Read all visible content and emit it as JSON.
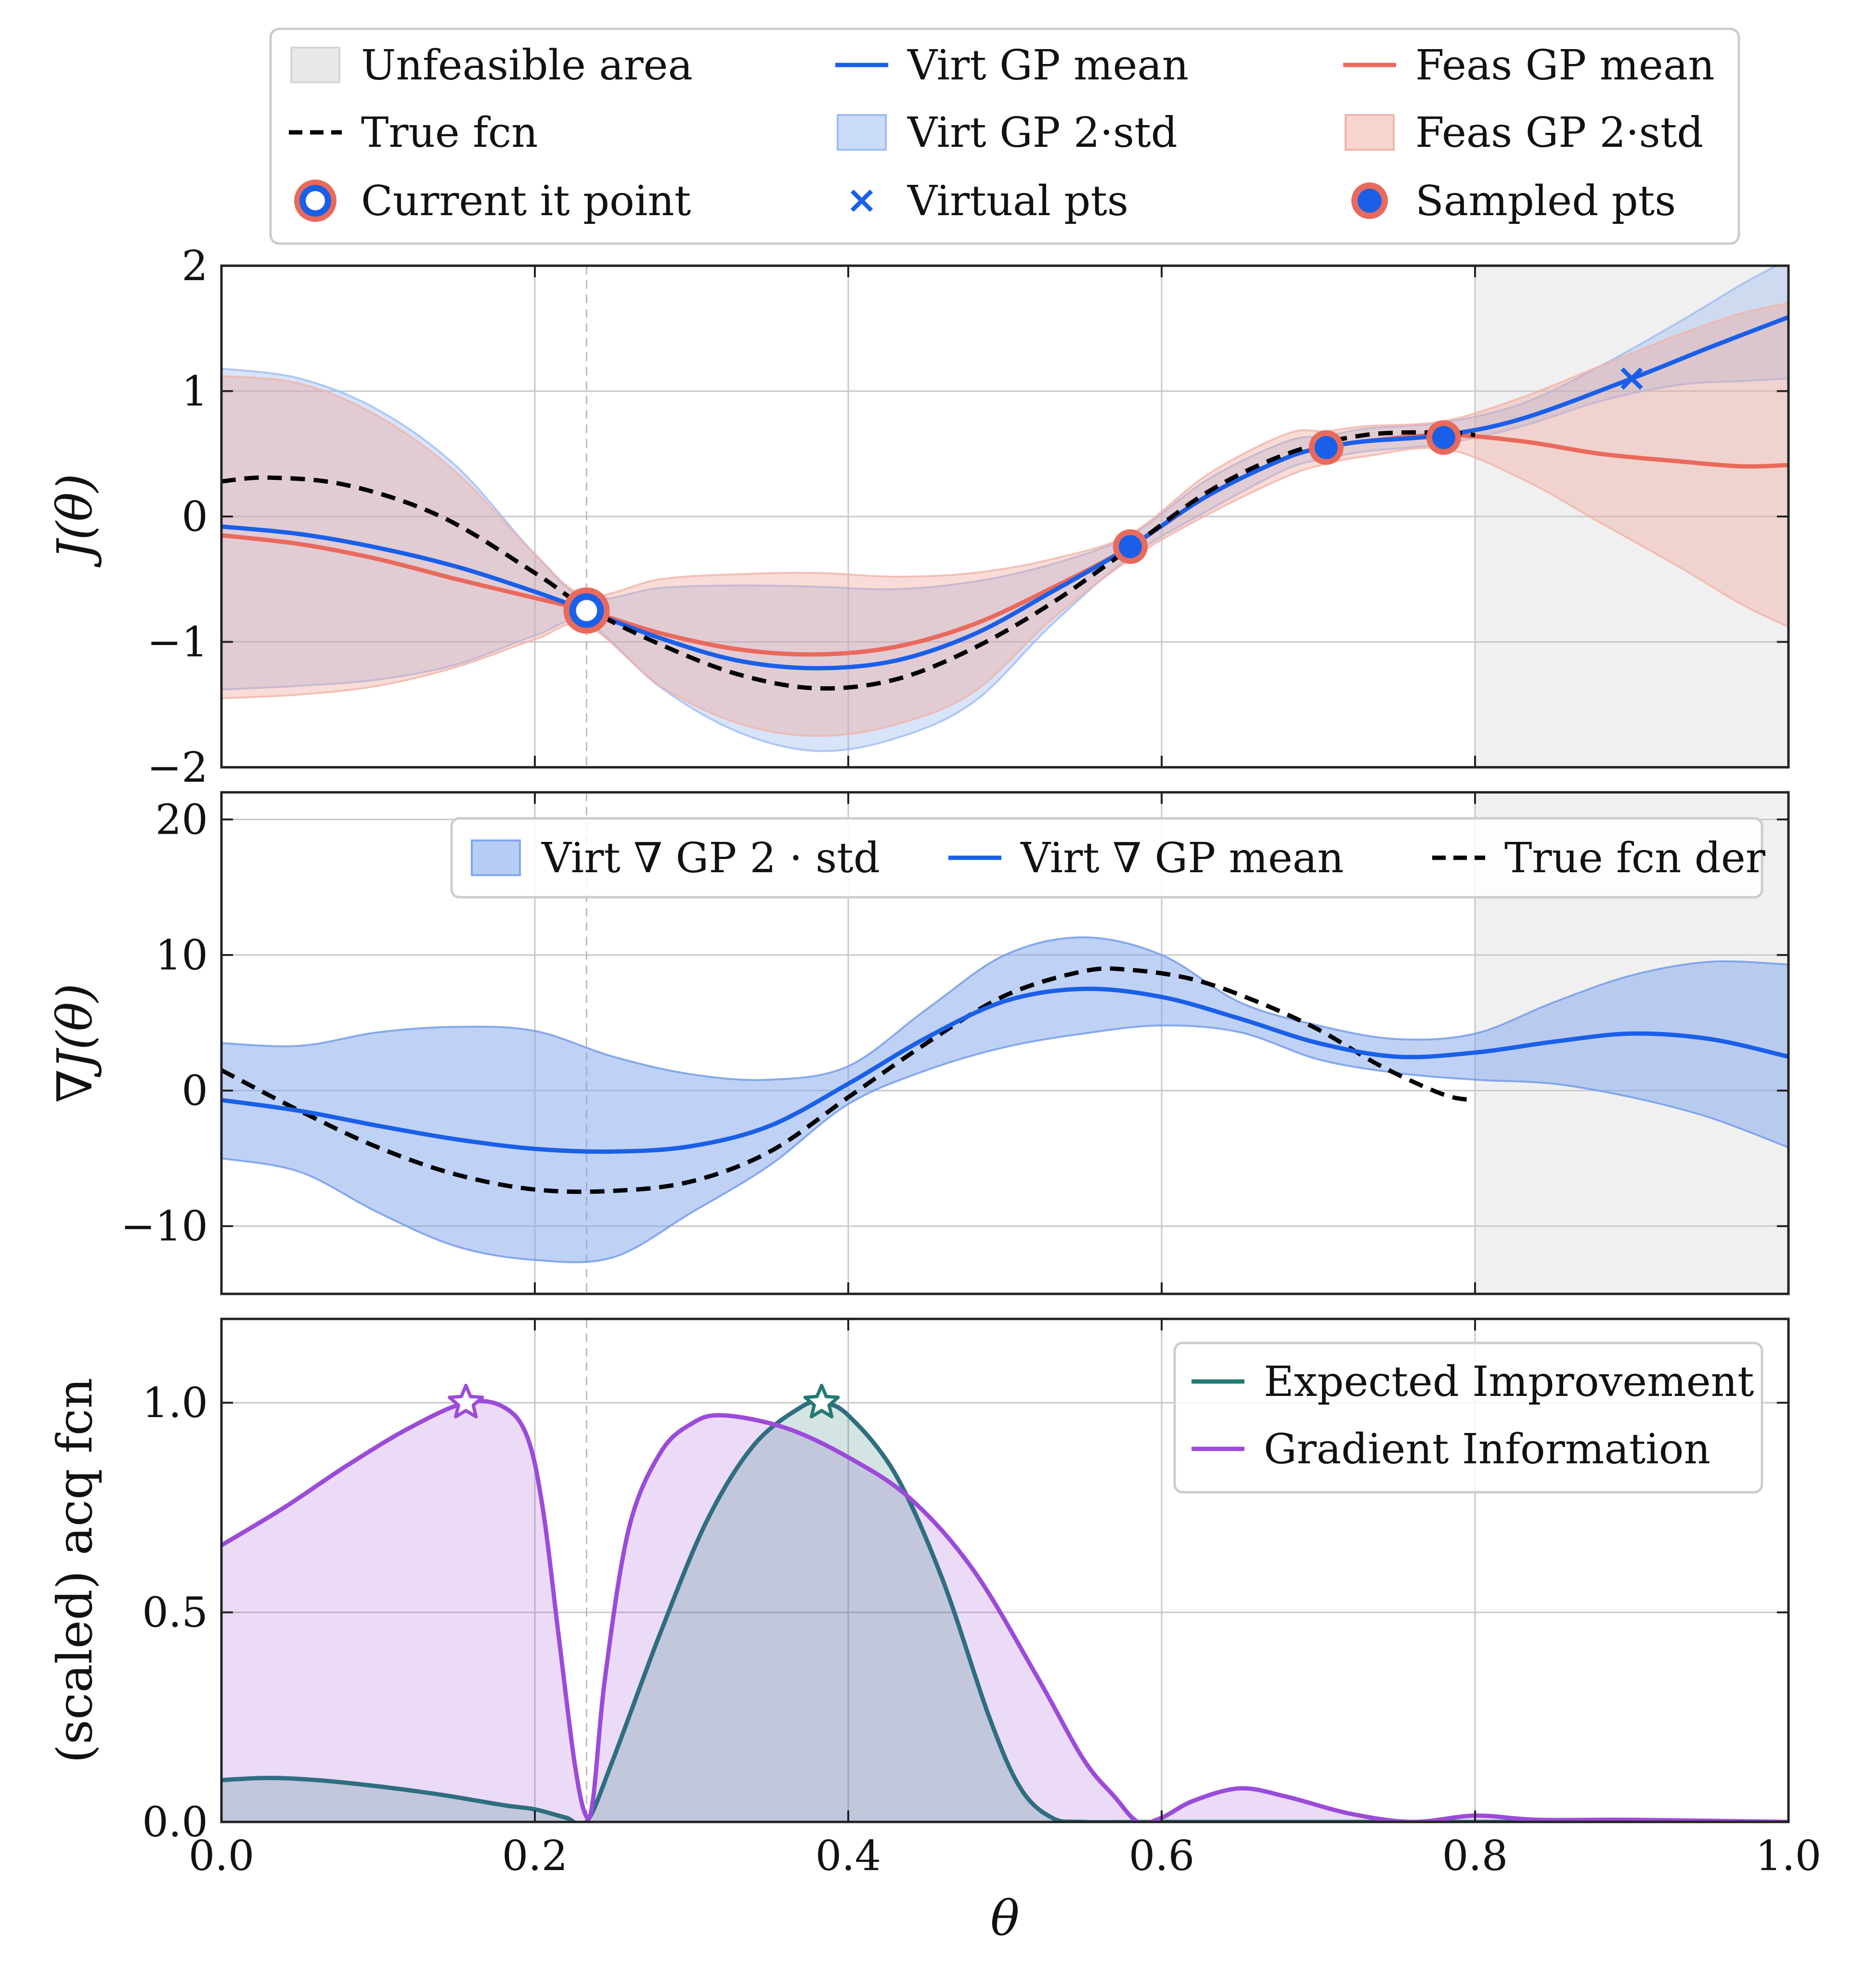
{
  "legend_top": {
    "items": [
      {
        "label": "Unfeasible area",
        "kind": "patch",
        "fill": "#e4e4e4",
        "stroke": "#d6d6d6"
      },
      {
        "label": "Virt GP mean",
        "kind": "line",
        "color": "#1a5fe8"
      },
      {
        "label": "Feas GP mean",
        "kind": "line",
        "color": "#e96a5c"
      },
      {
        "label": "True fcn",
        "kind": "dashed",
        "color": "#000000"
      },
      {
        "label": "Virt GP 2·std",
        "kind": "patch",
        "fill": "#c2d6f8",
        "stroke": "#9fbcf2"
      },
      {
        "label": "Feas GP 2·std",
        "kind": "patch",
        "fill": "#f7cfc8",
        "stroke": "#f0b4aa"
      },
      {
        "label": "Current it point",
        "kind": "ring",
        "color": "#1a5fe8",
        "edge": "#e96a5c"
      },
      {
        "label": "Virtual pts",
        "kind": "cross",
        "color": "#1a5fe8"
      },
      {
        "label": "Sampled pts",
        "kind": "dot",
        "color": "#1a5fe8",
        "edge": "#e96a5c"
      }
    ]
  },
  "legend_mid": {
    "items": [
      {
        "label": "Virt ∇ GP 2 · std",
        "kind": "patch",
        "fill": "#a9c4f5",
        "stroke": "#7fa6ee"
      },
      {
        "label": "Virt ∇ GP mean",
        "kind": "line",
        "color": "#1a5fe8"
      },
      {
        "label": "True fcn der",
        "kind": "dashed",
        "color": "#000000"
      }
    ]
  },
  "legend_bot": {
    "items": [
      {
        "label": "Expected Improvement",
        "kind": "line",
        "color": "#237a75"
      },
      {
        "label": "Gradient Information",
        "kind": "line",
        "color": "#9b4bd9"
      }
    ]
  },
  "colors": {
    "virt": "#1a5fe8",
    "feas": "#e96a5c",
    "true": "#000000",
    "ei": "#237a75",
    "gi": "#9b4bd9",
    "unfeasible": "#f0f0f0"
  },
  "chart_data": [
    {
      "type": "line",
      "ylabel": "J(θ)",
      "xlim": [
        0,
        1
      ],
      "ylim": [
        -2,
        2
      ],
      "yticks": [
        -2,
        -1,
        0,
        1,
        2
      ],
      "ytick_labels": [
        "−2",
        "−1",
        "0",
        "1",
        "2"
      ],
      "xticks": [
        0.0,
        0.2,
        0.4,
        0.6,
        0.8,
        1.0
      ],
      "grid": true,
      "unfeasible_region": [
        0.8,
        1.0
      ],
      "current_iteration_x": 0.233,
      "series": [
        {
          "name": "True fcn",
          "style": "dashed",
          "x": [
            0,
            0.03,
            0.08,
            0.14,
            0.2,
            0.233,
            0.28,
            0.33,
            0.38,
            0.43,
            0.48,
            0.53,
            0.58,
            0.63,
            0.68,
            0.73,
            0.78,
            0.8
          ],
          "y": [
            0.28,
            0.31,
            0.25,
            0.0,
            -0.45,
            -0.73,
            -1.02,
            -1.26,
            -1.37,
            -1.3,
            -1.05,
            -0.69,
            -0.25,
            0.2,
            0.5,
            0.65,
            0.67,
            0.65
          ]
        },
        {
          "name": "Virt GP mean",
          "x": [
            0,
            0.05,
            0.1,
            0.15,
            0.2,
            0.233,
            0.28,
            0.33,
            0.38,
            0.43,
            0.48,
            0.53,
            0.58,
            0.63,
            0.68,
            0.705,
            0.73,
            0.78,
            0.83,
            0.9,
            0.95,
            1.0
          ],
          "y": [
            -0.08,
            -0.14,
            -0.25,
            -0.4,
            -0.6,
            -0.75,
            -0.97,
            -1.15,
            -1.21,
            -1.15,
            -0.94,
            -0.6,
            -0.24,
            0.17,
            0.47,
            0.55,
            0.6,
            0.65,
            0.78,
            1.1,
            1.35,
            1.59
          ]
        },
        {
          "name": "Feas GP mean",
          "x": [
            0,
            0.05,
            0.1,
            0.15,
            0.2,
            0.233,
            0.28,
            0.33,
            0.38,
            0.43,
            0.48,
            0.53,
            0.58,
            0.63,
            0.68,
            0.705,
            0.73,
            0.78,
            0.83,
            0.88,
            0.93,
            0.97,
            1.0
          ],
          "y": [
            -0.15,
            -0.22,
            -0.34,
            -0.5,
            -0.65,
            -0.75,
            -0.93,
            -1.06,
            -1.1,
            -1.04,
            -0.86,
            -0.57,
            -0.24,
            0.17,
            0.47,
            0.55,
            0.6,
            0.65,
            0.6,
            0.5,
            0.44,
            0.4,
            0.41
          ]
        },
        {
          "name": "Virt GP 2·std",
          "kind": "band",
          "x": [
            0,
            0.05,
            0.1,
            0.15,
            0.2,
            0.233,
            0.28,
            0.33,
            0.38,
            0.43,
            0.48,
            0.53,
            0.58,
            0.63,
            0.68,
            0.705,
            0.73,
            0.78,
            0.83,
            0.88,
            0.93,
            0.97,
            1.0
          ],
          "upper": [
            1.18,
            1.1,
            0.85,
            0.4,
            -0.3,
            -0.65,
            -0.57,
            -0.55,
            -0.56,
            -0.58,
            -0.52,
            -0.38,
            -0.15,
            0.3,
            0.6,
            0.64,
            0.7,
            0.75,
            0.9,
            1.2,
            1.55,
            1.85,
            2.05
          ],
          "lower": [
            -1.38,
            -1.35,
            -1.3,
            -1.18,
            -0.95,
            -0.85,
            -1.36,
            -1.72,
            -1.87,
            -1.77,
            -1.48,
            -0.86,
            -0.32,
            0.05,
            0.38,
            0.46,
            0.52,
            0.58,
            0.72,
            0.92,
            1.05,
            1.08,
            1.1
          ]
        },
        {
          "name": "Feas GP 2·std",
          "kind": "band",
          "x": [
            0,
            0.05,
            0.1,
            0.15,
            0.2,
            0.233,
            0.28,
            0.33,
            0.38,
            0.43,
            0.48,
            0.53,
            0.58,
            0.63,
            0.68,
            0.705,
            0.73,
            0.78,
            0.83,
            0.88,
            0.93,
            0.97,
            1.0
          ],
          "upper": [
            1.12,
            1.06,
            0.8,
            0.35,
            -0.3,
            -0.63,
            -0.5,
            -0.46,
            -0.45,
            -0.48,
            -0.45,
            -0.34,
            -0.14,
            0.34,
            0.66,
            0.68,
            0.72,
            0.76,
            0.95,
            1.2,
            1.45,
            1.62,
            1.7
          ],
          "lower": [
            -1.45,
            -1.42,
            -1.35,
            -1.2,
            -0.98,
            -0.87,
            -1.35,
            -1.65,
            -1.75,
            -1.66,
            -1.4,
            -0.82,
            -0.34,
            0.02,
            0.32,
            0.42,
            0.48,
            0.54,
            0.3,
            -0.05,
            -0.4,
            -0.7,
            -0.88
          ]
        }
      ],
      "current_point": {
        "x": 0.233,
        "y": -0.75
      },
      "sampled_points": [
        {
          "x": 0.58,
          "y": -0.24
        },
        {
          "x": 0.705,
          "y": 0.55
        },
        {
          "x": 0.78,
          "y": 0.63
        }
      ],
      "virtual_points": [
        {
          "x": 0.9,
          "y": 1.1
        }
      ]
    },
    {
      "type": "line",
      "ylabel": "∇J(θ)",
      "xlim": [
        0,
        1
      ],
      "ylim": [
        -15,
        22
      ],
      "yticks": [
        -10,
        0,
        10,
        20
      ],
      "ytick_labels": [
        "−10",
        "0",
        "10",
        "20"
      ],
      "xticks": [
        0.0,
        0.2,
        0.4,
        0.6,
        0.8,
        1.0
      ],
      "grid": true,
      "unfeasible_region": [
        0.8,
        1.0
      ],
      "series": [
        {
          "name": "True fcn der",
          "style": "dashed",
          "x": [
            0,
            0.05,
            0.1,
            0.15,
            0.2,
            0.25,
            0.3,
            0.35,
            0.4,
            0.45,
            0.5,
            0.55,
            0.58,
            0.62,
            0.66,
            0.7,
            0.74,
            0.78,
            0.8
          ],
          "y": [
            1.5,
            -1.5,
            -4.2,
            -6.2,
            -7.3,
            -7.4,
            -6.7,
            -4.5,
            -0.5,
            3.5,
            7.0,
            8.8,
            8.9,
            8.2,
            6.6,
            4.5,
            1.8,
            -0.3,
            -0.7
          ]
        },
        {
          "name": "Virt ∇ GP mean",
          "x": [
            0,
            0.05,
            0.1,
            0.15,
            0.2,
            0.25,
            0.3,
            0.35,
            0.4,
            0.45,
            0.5,
            0.55,
            0.6,
            0.65,
            0.7,
            0.75,
            0.8,
            0.85,
            0.9,
            0.95,
            1.0
          ],
          "y": [
            -0.7,
            -1.5,
            -2.6,
            -3.6,
            -4.3,
            -4.5,
            -4.1,
            -2.6,
            0.5,
            3.9,
            6.6,
            7.5,
            6.9,
            5.3,
            3.5,
            2.5,
            2.8,
            3.6,
            4.2,
            3.8,
            2.5
          ]
        },
        {
          "name": "Virt ∇ GP 2 · std",
          "kind": "band",
          "x": [
            0,
            0.05,
            0.1,
            0.15,
            0.2,
            0.25,
            0.3,
            0.35,
            0.4,
            0.45,
            0.5,
            0.55,
            0.6,
            0.65,
            0.7,
            0.75,
            0.8,
            0.85,
            0.9,
            0.95,
            1.0
          ],
          "upper": [
            3.5,
            3.3,
            4.3,
            4.7,
            4.4,
            2.5,
            1.2,
            0.8,
            1.8,
            6.0,
            10.0,
            11.3,
            10.0,
            6.5,
            4.8,
            3.8,
            4.2,
            6.5,
            8.5,
            9.5,
            9.3
          ],
          "lower": [
            -5.0,
            -6.0,
            -9.0,
            -11.5,
            -12.5,
            -12.3,
            -9.0,
            -5.5,
            -1.0,
            1.5,
            3.2,
            4.2,
            4.8,
            4.3,
            2.3,
            1.3,
            0.8,
            0.5,
            -0.5,
            -2.0,
            -4.2
          ]
        }
      ]
    },
    {
      "type": "area",
      "ylabel": "(scaled) acq fcn",
      "xlabel": "θ",
      "xlim": [
        0,
        1
      ],
      "ylim": [
        0,
        1.2
      ],
      "yticks": [
        0,
        0.5,
        1.0
      ],
      "ytick_labels": [
        "0.0",
        "0.5",
        "1.0"
      ],
      "xticks": [
        0.0,
        0.2,
        0.4,
        0.6,
        0.8,
        1.0
      ],
      "xtick_labels": [
        "0.0",
        "0.2",
        "0.4",
        "0.6",
        "0.8",
        "1.0"
      ],
      "grid": true,
      "series": [
        {
          "name": "Gradient Information",
          "x": [
            0,
            0.04,
            0.08,
            0.12,
            0.156,
            0.18,
            0.195,
            0.205,
            0.215,
            0.225,
            0.232,
            0.237,
            0.245,
            0.26,
            0.28,
            0.3,
            0.32,
            0.36,
            0.4,
            0.44,
            0.48,
            0.52,
            0.55,
            0.57,
            0.585,
            0.6,
            0.62,
            0.65,
            0.68,
            0.72,
            0.76,
            0.8,
            0.84,
            0.9,
            1.0
          ],
          "y": [
            0.66,
            0.75,
            0.85,
            0.94,
            1.0,
            0.99,
            0.92,
            0.75,
            0.45,
            0.15,
            0.02,
            0.05,
            0.35,
            0.7,
            0.88,
            0.95,
            0.97,
            0.94,
            0.87,
            0.77,
            0.6,
            0.35,
            0.15,
            0.06,
            0.0,
            0.01,
            0.05,
            0.08,
            0.06,
            0.02,
            0.0,
            0.015,
            0.005,
            0.005,
            0.0
          ]
        },
        {
          "name": "Expected Improvement",
          "x": [
            0,
            0.03,
            0.06,
            0.1,
            0.14,
            0.18,
            0.2,
            0.22,
            0.233,
            0.25,
            0.28,
            0.31,
            0.34,
            0.37,
            0.383,
            0.4,
            0.43,
            0.46,
            0.49,
            0.51,
            0.53,
            0.55,
            0.6,
            0.8,
            1.0
          ],
          "y": [
            0.1,
            0.105,
            0.1,
            0.085,
            0.065,
            0.04,
            0.03,
            0.01,
            0.0,
            0.15,
            0.45,
            0.72,
            0.9,
            0.99,
            1.0,
            0.97,
            0.83,
            0.58,
            0.25,
            0.08,
            0.01,
            0.0,
            0.0,
            0.0,
            0.0
          ]
        }
      ],
      "maxima": [
        {
          "series": "Gradient Information",
          "x": 0.156,
          "y": 1.0
        },
        {
          "series": "Expected Improvement",
          "x": 0.383,
          "y": 1.0
        }
      ],
      "current_iteration_x": 0.233
    }
  ]
}
